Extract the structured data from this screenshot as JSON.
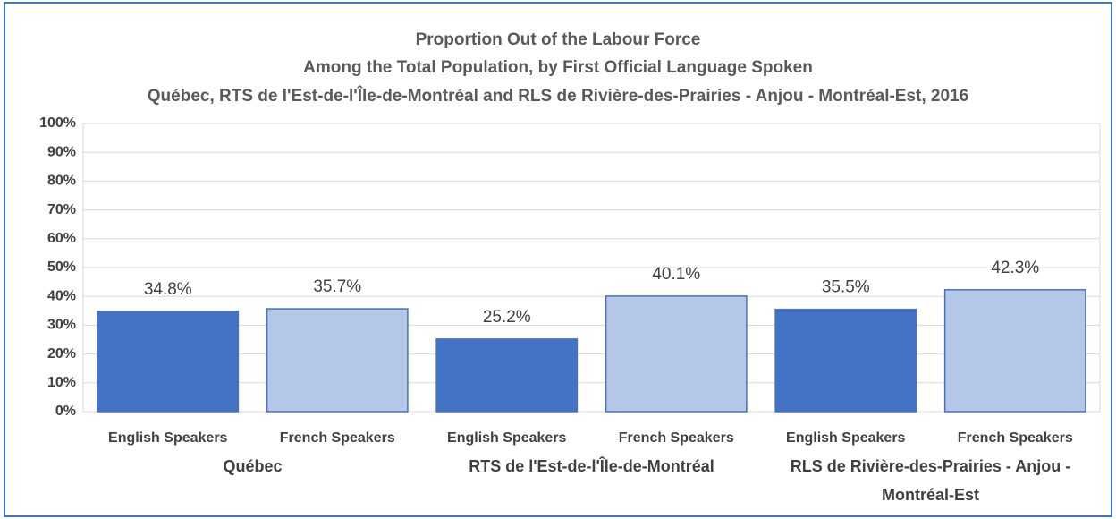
{
  "chart_data": {
    "type": "bar",
    "title": "Proportion Out of the Labour Force",
    "subtitle": [
      "Among the Total Population, by First Official Language Spoken",
      "Québec, RTS de l'Est-de-l'Île-de-Montréal and RLS de Rivière-des-Prairies - Anjou - Montréal-Est, 2016"
    ],
    "categories": [
      "English Speakers",
      "French Speakers",
      "English Speakers",
      "French Speakers",
      "English Speakers",
      "French Speakers"
    ],
    "groups": [
      "Québec",
      "RTS de l'Est-de-l'Île-de-Montréal",
      "RLS de Rivière-des-Prairies - Anjou - Montréal-Est"
    ],
    "values": [
      34.8,
      35.7,
      25.2,
      40.1,
      35.5,
      42.3
    ],
    "value_labels": [
      "34.8%",
      "35.7%",
      "25.2%",
      "40.1%",
      "35.5%",
      "42.3%"
    ],
    "colors": [
      "#4472c4",
      "#b4c7e7",
      "#4472c4",
      "#b4c7e7",
      "#4472c4",
      "#b4c7e7"
    ],
    "ylim": [
      0,
      100
    ],
    "yticks": [
      {
        "value": 0,
        "label": "0%"
      },
      {
        "value": 10,
        "label": "10%"
      },
      {
        "value": 20,
        "label": "20%"
      },
      {
        "value": 30,
        "label": "30%"
      },
      {
        "value": 40,
        "label": "40%"
      },
      {
        "value": 50,
        "label": "50%"
      },
      {
        "value": 60,
        "label": "60%"
      },
      {
        "value": 70,
        "label": "70%"
      },
      {
        "value": 80,
        "label": "80%"
      },
      {
        "value": 90,
        "label": "90%"
      },
      {
        "value": 100,
        "label": "100%"
      }
    ],
    "grid": true
  }
}
